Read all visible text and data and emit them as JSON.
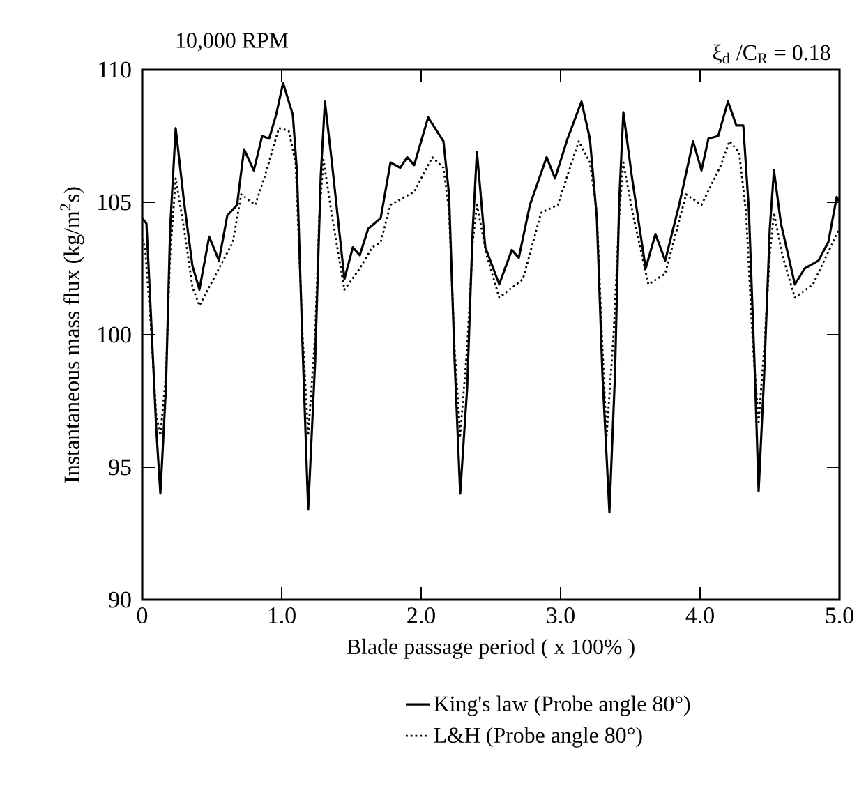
{
  "chart_data": {
    "type": "line",
    "title": "10,000 RPM",
    "annotations": [
      "ξ$_{d}$ /C$_{R}$ = 0.18"
    ],
    "xlabel": "Blade passage period ( x 100% )",
    "ylabel": "Instantaneous mass flux (kg/m$^{2}$s)",
    "xlim": [
      0,
      5
    ],
    "ylim": [
      90,
      110
    ],
    "xticks": [
      0,
      {
        "value": 1,
        "label": "1.0"
      },
      {
        "value": 2,
        "label": "2.0"
      },
      {
        "value": 3,
        "label": "3.0"
      },
      {
        "value": 4,
        "label": "4.0"
      },
      {
        "value": 5,
        "label": "5.0"
      }
    ],
    "yticks": [
      90,
      95,
      100,
      105,
      110
    ],
    "grid": false,
    "legend": "bottom",
    "marker": "none",
    "series": [
      {
        "name": "King's law (Probe angle 80°)",
        "color": "#000000",
        "line_style": "solid",
        "x": [
          0,
          0.03,
          0.06,
          0.1,
          0.13,
          0.17,
          0.2,
          0.24,
          0.3,
          0.36,
          0.41,
          0.48,
          0.55,
          0.61,
          0.68,
          0.73,
          0.8,
          0.86,
          0.91,
          0.96,
          1.01,
          1.08,
          1.11,
          1.15,
          1.19,
          1.24,
          1.28,
          1.31,
          1.36,
          1.45,
          1.51,
          1.56,
          1.62,
          1.71,
          1.78,
          1.85,
          1.9,
          1.95,
          2.05,
          2.16,
          2.2,
          2.24,
          2.28,
          2.33,
          2.37,
          2.4,
          2.46,
          2.56,
          2.65,
          2.7,
          2.78,
          2.9,
          2.96,
          3.05,
          3.15,
          3.21,
          3.26,
          3.3,
          3.35,
          3.39,
          3.42,
          3.45,
          3.51,
          3.61,
          3.68,
          3.75,
          3.85,
          3.95,
          4.01,
          4.06,
          4.13,
          4.2,
          4.26,
          4.31,
          4.35,
          4.39,
          4.42,
          4.46,
          4.5,
          4.53,
          4.58,
          4.68,
          4.75,
          4.85,
          4.92,
          4.98,
          5.0
        ],
        "values": [
          104.4,
          104.2,
          101.0,
          96.5,
          94.0,
          98.0,
          104.0,
          107.8,
          105.0,
          102.6,
          101.7,
          103.7,
          102.8,
          104.5,
          104.9,
          107.0,
          106.2,
          107.5,
          107.4,
          108.3,
          109.5,
          108.3,
          106.1,
          99.5,
          93.4,
          99.0,
          106.0,
          108.8,
          106.5,
          102.1,
          103.3,
          103.0,
          104.0,
          104.4,
          106.5,
          106.3,
          106.7,
          106.4,
          108.2,
          107.3,
          105.3,
          99.0,
          94.0,
          98.0,
          104.0,
          106.9,
          103.3,
          101.9,
          103.2,
          102.9,
          104.9,
          106.7,
          105.9,
          107.4,
          108.8,
          107.4,
          104.4,
          98.5,
          93.3,
          98.5,
          105.0,
          108.4,
          106.0,
          102.5,
          103.8,
          102.8,
          104.9,
          107.3,
          106.2,
          107.4,
          107.5,
          108.8,
          107.9,
          107.9,
          104.7,
          99.0,
          94.1,
          98.5,
          104.0,
          106.2,
          104.2,
          101.9,
          102.5,
          102.8,
          103.5,
          105.2,
          105.0
        ]
      },
      {
        "name": "L&H (Probe angle 80°)",
        "color": "#000000",
        "line_style": "dotted",
        "x": [
          0,
          0.02,
          0.06,
          0.1,
          0.13,
          0.17,
          0.2,
          0.24,
          0.3,
          0.36,
          0.41,
          0.53,
          0.65,
          0.71,
          0.81,
          0.88,
          0.98,
          1.05,
          1.1,
          1.15,
          1.19,
          1.24,
          1.27,
          1.3,
          1.36,
          1.45,
          1.56,
          1.65,
          1.71,
          1.78,
          1.95,
          2.08,
          2.16,
          2.2,
          2.24,
          2.28,
          2.33,
          2.37,
          2.4,
          2.47,
          2.56,
          2.73,
          2.86,
          2.98,
          3.13,
          3.21,
          3.26,
          3.3,
          3.33,
          3.38,
          3.42,
          3.45,
          3.52,
          3.63,
          3.75,
          3.9,
          4.01,
          4.15,
          4.21,
          4.28,
          4.33,
          4.38,
          4.42,
          4.46,
          4.5,
          4.53,
          4.59,
          4.68,
          4.81,
          4.98,
          5.0
        ],
        "values": [
          103.6,
          103.3,
          100.5,
          97.0,
          96.2,
          98.5,
          103.0,
          105.9,
          104.0,
          101.8,
          101.1,
          102.3,
          103.5,
          105.3,
          104.9,
          106.0,
          107.8,
          107.7,
          106.5,
          100.0,
          96.2,
          100.0,
          104.5,
          106.6,
          104.5,
          101.7,
          102.5,
          103.3,
          103.5,
          104.9,
          105.4,
          106.7,
          106.3,
          104.7,
          99.5,
          96.2,
          99.5,
          103.5,
          104.9,
          103.0,
          101.4,
          102.1,
          104.6,
          104.9,
          107.3,
          106.5,
          104.6,
          99.5,
          96.2,
          100.0,
          104.5,
          106.5,
          104.5,
          101.9,
          102.3,
          105.3,
          104.9,
          106.4,
          107.3,
          106.9,
          104.6,
          99.5,
          96.7,
          99.5,
          103.0,
          104.6,
          103.0,
          101.4,
          101.9,
          103.8,
          104.0
        ]
      }
    ]
  }
}
